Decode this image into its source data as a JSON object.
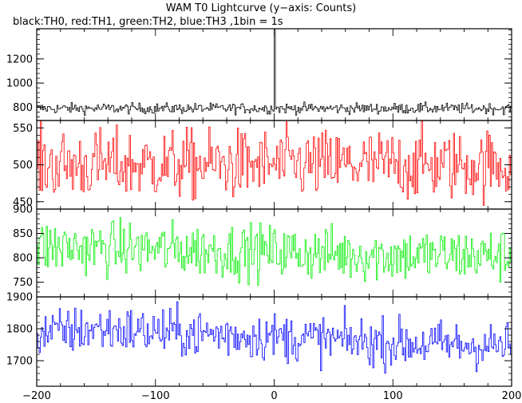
{
  "chart_data": {
    "type": "line",
    "title": "WAM T0 Lightcurve (y−axis: Counts)",
    "subtitle": "black:TH0, red:TH1, green:TH2, blue:TH3 ,1bin = 1s",
    "xlim": [
      -200,
      200
    ],
    "x_ticks": [
      -200,
      -100,
      0,
      100,
      200
    ],
    "x_tick_labels": [
      "−200",
      "−100",
      "0",
      "100",
      "200"
    ],
    "grid": false,
    "panels": [
      {
        "name": "TH0",
        "color": "#000000",
        "ylim": [
          690,
          1450
        ],
        "y_ticks": [
          800,
          1000,
          1200
        ],
        "y_tick_labels": [
          "800",
          "1000",
          "1200"
        ],
        "baseline": 790,
        "spread": 22,
        "noise_style": "fine",
        "spike": {
          "x": 0,
          "peak": 1450
        },
        "approximate_points": [
          [
            -200,
            790
          ],
          [
            -150,
            795
          ],
          [
            -100,
            790
          ],
          [
            -50,
            785
          ],
          [
            0,
            1450
          ],
          [
            50,
            790
          ],
          [
            100,
            785
          ],
          [
            150,
            790
          ],
          [
            200,
            785
          ]
        ]
      },
      {
        "name": "TH1",
        "color": "#ff0000",
        "ylim": [
          440,
          560
        ],
        "y_ticks": [
          450,
          500,
          550
        ],
        "y_tick_labels": [
          "450",
          "500",
          "550"
        ],
        "baseline": 500,
        "spread": 24,
        "noise_style": "coarse",
        "approximate_points": [
          [
            -200,
            500
          ],
          [
            -150,
            500
          ],
          [
            -100,
            505
          ],
          [
            -50,
            500
          ],
          [
            0,
            498
          ],
          [
            50,
            502
          ],
          [
            100,
            498
          ],
          [
            150,
            500
          ],
          [
            200,
            495
          ]
        ]
      },
      {
        "name": "TH2",
        "color": "#00ee00",
        "ylim": [
          720,
          900
        ],
        "y_ticks": [
          750,
          800,
          850,
          900
        ],
        "y_tick_labels": [
          "750",
          "800",
          "850",
          "900"
        ],
        "baseline": 815,
        "spread": 28,
        "noise_style": "coarse",
        "trend": [
          [
            -200,
            822
          ],
          [
            -100,
            818
          ],
          [
            0,
            812
          ],
          [
            100,
            805
          ],
          [
            200,
            805
          ]
        ],
        "approximate_points": [
          [
            -200,
            822
          ],
          [
            -150,
            820
          ],
          [
            -100,
            818
          ],
          [
            -50,
            815
          ],
          [
            0,
            812
          ],
          [
            50,
            808
          ],
          [
            100,
            805
          ],
          [
            150,
            805
          ],
          [
            200,
            805
          ]
        ]
      },
      {
        "name": "TH3",
        "color": "#0000ff",
        "ylim": [
          1620,
          1900
        ],
        "y_ticks": [
          1700,
          1800,
          1900
        ],
        "y_tick_labels": [
          "1700",
          "1800",
          "1900"
        ],
        "baseline": 1775,
        "spread": 38,
        "noise_style": "coarse",
        "trend": [
          [
            -200,
            1785
          ],
          [
            -150,
            1800
          ],
          [
            -100,
            1790
          ],
          [
            0,
            1775
          ],
          [
            100,
            1755
          ],
          [
            200,
            1745
          ]
        ],
        "approximate_points": [
          [
            -200,
            1785
          ],
          [
            -150,
            1800
          ],
          [
            -100,
            1790
          ],
          [
            -50,
            1785
          ],
          [
            0,
            1775
          ],
          [
            50,
            1765
          ],
          [
            100,
            1755
          ],
          [
            150,
            1750
          ],
          [
            200,
            1745
          ]
        ]
      }
    ]
  }
}
